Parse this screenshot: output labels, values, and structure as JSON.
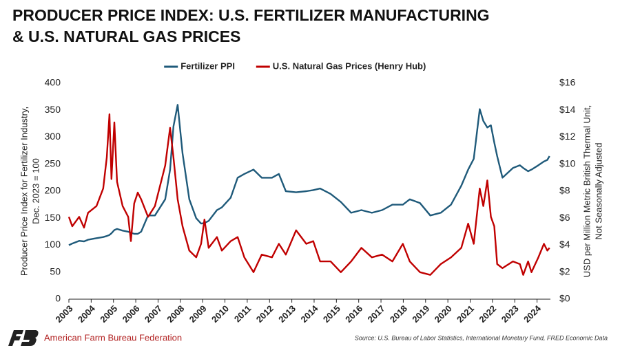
{
  "chart_data": {
    "type": "line",
    "title": "PRODUCER PRICE INDEX: U.S. FERTILIZER MANUFACTURING",
    "title_line2": "& U.S. NATURAL GAS PRICES",
    "y_label": "Producer Price Index for Fertilizer Industry,",
    "y_label_line2": "Dec. 2023 = 100",
    "y2_label": "USD per Million Metric British Thermal Unit,",
    "y2_label_line2": "Not Seasonally Adjusted",
    "source": "Source: U.S. Bureau of Labor Statistics, International Monetary Fund, FRED Economic Data",
    "organization": "American Farm Bureau Federation",
    "x": [
      2003.0,
      2003.15,
      2003.46,
      2003.68,
      2003.86,
      2004.24,
      2004.54,
      2004.7,
      2004.82,
      2004.91,
      2005.04,
      2005.16,
      2005.41,
      2005.66,
      2005.78,
      2005.93,
      2006.09,
      2006.24,
      2006.55,
      2006.86,
      2007.32,
      2007.54,
      2007.69,
      2007.88,
      2008.1,
      2008.4,
      2008.71,
      2008.93,
      2009.08,
      2009.27,
      2009.64,
      2009.86,
      2010.26,
      2010.57,
      2010.87,
      2011.28,
      2011.65,
      2012.11,
      2012.42,
      2012.73,
      2013.19,
      2013.65,
      2013.96,
      2014.27,
      2014.74,
      2015.2,
      2015.66,
      2016.12,
      2016.59,
      2017.05,
      2017.51,
      2017.98,
      2018.29,
      2018.75,
      2019.21,
      2019.68,
      2020.14,
      2020.6,
      2020.91,
      2021.16,
      2021.43,
      2021.59,
      2021.77,
      2021.93,
      2022.08,
      2022.21,
      2022.45,
      2022.92,
      2023.23,
      2023.38,
      2023.6,
      2023.75,
      2024.06,
      2024.31,
      2024.46,
      2024.56
    ],
    "series": [
      {
        "name": "Fertilizer PPI",
        "color": "#1f5a7a",
        "axis": "y",
        "values": [
          100,
          103,
          108,
          107,
          110,
          113,
          115,
          117,
          119,
          122,
          128,
          130,
          127,
          125,
          123,
          121,
          121,
          125,
          155,
          155,
          185,
          240,
          320,
          360,
          270,
          185,
          150,
          140,
          141,
          145,
          165,
          170,
          188,
          225,
          232,
          240,
          225,
          225,
          232,
          200,
          198,
          200,
          202,
          205,
          195,
          180,
          160,
          165,
          160,
          165,
          175,
          175,
          185,
          178,
          155,
          160,
          175,
          210,
          240,
          260,
          352,
          330,
          318,
          322,
          290,
          265,
          225,
          243,
          248,
          243,
          237,
          240,
          248,
          255,
          258,
          265
        ]
      },
      {
        "name": "U.S. Natural Gas Prices (Henry Hub)",
        "color": "#c00000",
        "axis": "y2",
        "values": [
          6.1,
          5.4,
          6.1,
          5.3,
          6.4,
          6.9,
          8.2,
          10.5,
          13.7,
          8.9,
          13.1,
          8.7,
          6.9,
          6.1,
          4.3,
          7.1,
          7.9,
          7.4,
          6.1,
          6.9,
          9.9,
          12.7,
          10.5,
          7.4,
          5.4,
          3.6,
          3.1,
          4.1,
          5.9,
          3.8,
          4.6,
          3.6,
          4.3,
          4.6,
          3.1,
          2.0,
          3.3,
          3.1,
          4.1,
          3.3,
          5.1,
          4.1,
          4.3,
          2.8,
          2.8,
          2.0,
          2.8,
          3.8,
          3.1,
          3.3,
          2.8,
          4.1,
          2.8,
          2.0,
          1.8,
          2.6,
          3.1,
          3.8,
          5.6,
          4.1,
          8.2,
          6.9,
          8.8,
          6.1,
          5.4,
          2.6,
          2.3,
          2.8,
          2.6,
          1.8,
          2.8,
          2.0,
          3.1,
          4.1,
          3.6,
          3.8
        ]
      }
    ],
    "xlim": [
      2003,
      2024.6
    ],
    "xticks": [
      2003,
      2004,
      2005,
      2006,
      2007,
      2008,
      2009,
      2010,
      2011,
      2012,
      2013,
      2014,
      2015,
      2016,
      2017,
      2018,
      2019,
      2020,
      2021,
      2022,
      2023,
      2024
    ],
    "ylim": [
      0,
      400
    ],
    "yticks": [
      0,
      50,
      100,
      150,
      200,
      250,
      300,
      350,
      400
    ],
    "y2lim": [
      0,
      16
    ],
    "y2ticks": [
      {
        "value": 0,
        "label": "$0"
      },
      {
        "value": 2,
        "label": "$2"
      },
      {
        "value": 4,
        "label": "$4"
      },
      {
        "value": 6,
        "label": "$6"
      },
      {
        "value": 8,
        "label": "$8"
      },
      {
        "value": 10,
        "label": "$10"
      },
      {
        "value": 12,
        "label": "$12"
      },
      {
        "value": 14,
        "label": "$14"
      },
      {
        "value": 16,
        "label": "$16"
      }
    ],
    "grid": false,
    "legend": "top"
  }
}
